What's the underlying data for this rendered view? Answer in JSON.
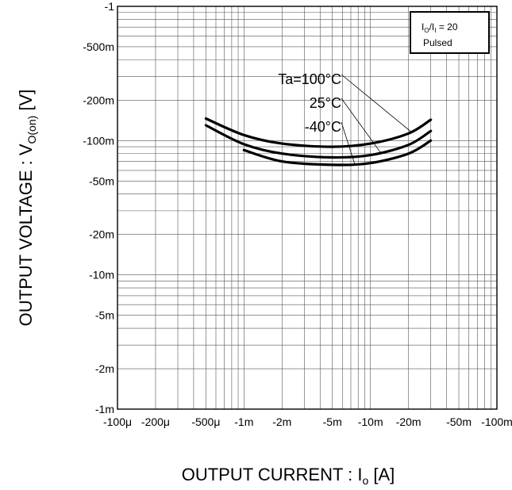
{
  "chart_data": {
    "type": "line",
    "title": "",
    "xlabel": {
      "main": "OUTPUT CURRENT : I",
      "sub": "o",
      "tail": " [A]"
    },
    "ylabel": {
      "main": "OUTPUT VOLTAGE : V",
      "sub": "O(on)",
      "tail": " [V]"
    },
    "x_scale": "log",
    "y_scale": "log",
    "xlim": [
      -0.0001,
      -0.1
    ],
    "ylim": [
      -0.001,
      -1
    ],
    "x_ticks": [
      {
        "value": -0.0001,
        "label": "-100μ"
      },
      {
        "value": -0.0002,
        "label": "-200μ"
      },
      {
        "value": -0.0005,
        "label": "-500μ"
      },
      {
        "value": -0.001,
        "label": "-1m"
      },
      {
        "value": -0.002,
        "label": "-2m"
      },
      {
        "value": -0.005,
        "label": "-5m"
      },
      {
        "value": -0.01,
        "label": "-10m"
      },
      {
        "value": -0.02,
        "label": "-20m"
      },
      {
        "value": -0.05,
        "label": "-50m"
      },
      {
        "value": -0.1,
        "label": "-100m"
      }
    ],
    "y_ticks": [
      {
        "value": -1,
        "label": "-1"
      },
      {
        "value": -0.5,
        "label": "-500m"
      },
      {
        "value": -0.2,
        "label": "-200m"
      },
      {
        "value": -0.1,
        "label": "-100m"
      },
      {
        "value": -0.05,
        "label": "-50m"
      },
      {
        "value": -0.02,
        "label": "-20m"
      },
      {
        "value": -0.01,
        "label": "-10m"
      },
      {
        "value": -0.005,
        "label": "-5m"
      },
      {
        "value": -0.002,
        "label": "-2m"
      },
      {
        "value": -0.001,
        "label": "-1m"
      }
    ],
    "grid": true,
    "legend_box": {
      "line1_main": "I",
      "line1_sub1": "O",
      "line1_mid": "/I",
      "line1_sub2": "I",
      "line1_tail": " = 20",
      "line2": "Pulsed",
      "placement": "top-right"
    },
    "series": [
      {
        "name": "Ta=100°C",
        "x": [
          -0.0005,
          -0.001,
          -0.002,
          -0.005,
          -0.01,
          -0.02,
          -0.03
        ],
        "y": [
          -0.146,
          -0.11,
          -0.095,
          -0.09,
          -0.095,
          -0.113,
          -0.143
        ]
      },
      {
        "name": "25°C",
        "x": [
          -0.0005,
          -0.001,
          -0.002,
          -0.005,
          -0.01,
          -0.02,
          -0.03
        ],
        "y": [
          -0.13,
          -0.094,
          -0.08,
          -0.075,
          -0.078,
          -0.093,
          -0.118
        ]
      },
      {
        "name": "-40°C",
        "x": [
          -0.001,
          -0.002,
          -0.005,
          -0.01,
          -0.02,
          -0.03
        ],
        "y": [
          -0.085,
          -0.07,
          -0.066,
          -0.068,
          -0.08,
          -0.1
        ]
      }
    ],
    "annotations": [
      {
        "text": "Ta=100°C",
        "series": 0,
        "target_x": -0.021
      },
      {
        "text": "25°C",
        "series": 1,
        "target_x": -0.012
      },
      {
        "text": "-40°C",
        "series": 2,
        "target_x": -0.0075
      }
    ]
  }
}
